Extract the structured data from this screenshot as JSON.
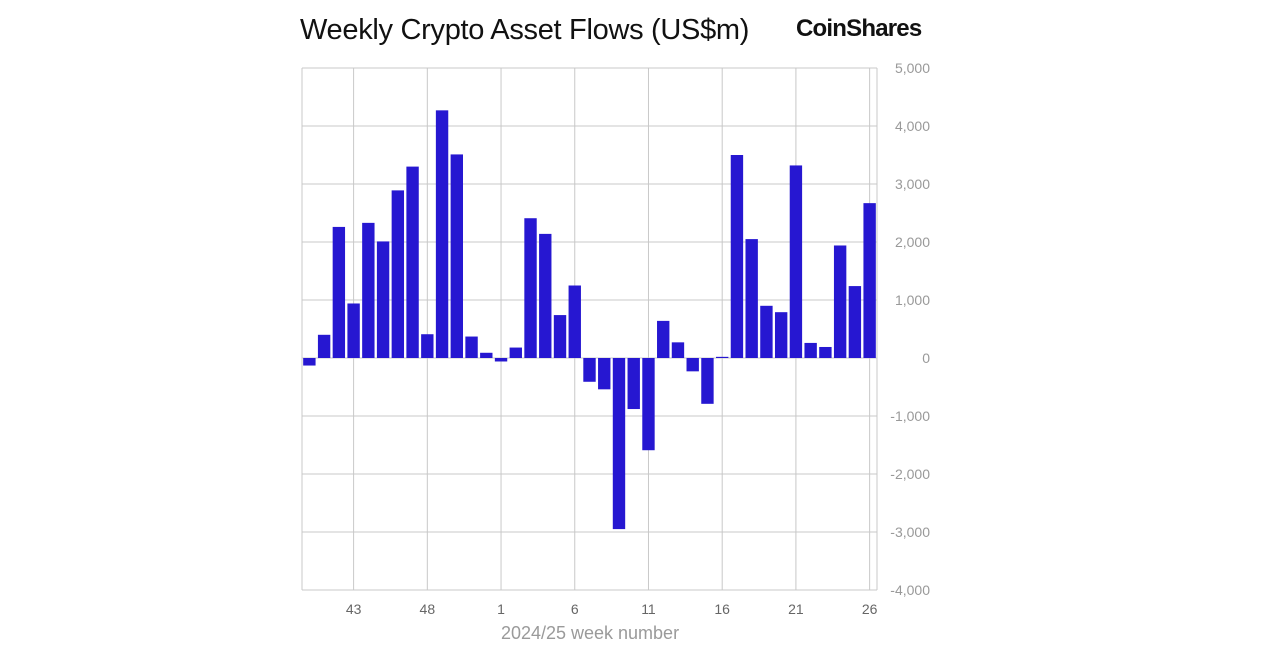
{
  "brand": {
    "logo_text": "CoinShares"
  },
  "colors": {
    "bar": "#2617d1",
    "grid": "#c8c8c8",
    "axis_text": "#999999"
  },
  "chart_data": {
    "type": "bar",
    "title": "Weekly Crypto Asset Flows (US$m)",
    "xlabel": "2024/25 week number",
    "ylabel": "",
    "ylim": [
      -4000,
      5000
    ],
    "yticks": [
      5000,
      4000,
      3000,
      2000,
      1000,
      0,
      -1000,
      -2000,
      -3000,
      -4000
    ],
    "ytick_labels": [
      "5,000",
      "4,000",
      "3,000",
      "2,000",
      "1,000",
      "0",
      "-1,000",
      "-2,000",
      "-3,000",
      "-4,000"
    ],
    "y_axis_position": "right",
    "grid": true,
    "categories": [
      "40",
      "41",
      "42",
      "43",
      "44",
      "45",
      "46",
      "47",
      "48",
      "49",
      "50",
      "51",
      "52",
      "1",
      "2",
      "3",
      "4",
      "5",
      "6",
      "7",
      "8",
      "9",
      "10",
      "11",
      "12",
      "13",
      "14",
      "15",
      "16",
      "17",
      "18",
      "19",
      "20",
      "21",
      "22",
      "23",
      "24",
      "25",
      "26"
    ],
    "x_tick_labels": [
      "43",
      "48",
      "1",
      "6",
      "11",
      "16",
      "21",
      "26"
    ],
    "values": [
      -130,
      400,
      2260,
      940,
      2330,
      2010,
      2890,
      3300,
      410,
      4270,
      3510,
      370,
      90,
      -60,
      180,
      2410,
      2140,
      740,
      1250,
      -410,
      -540,
      -2950,
      -880,
      -1590,
      640,
      270,
      -230,
      -790,
      20,
      3500,
      2050,
      900,
      790,
      3320,
      260,
      190,
      1940,
      1240,
      2670
    ]
  }
}
